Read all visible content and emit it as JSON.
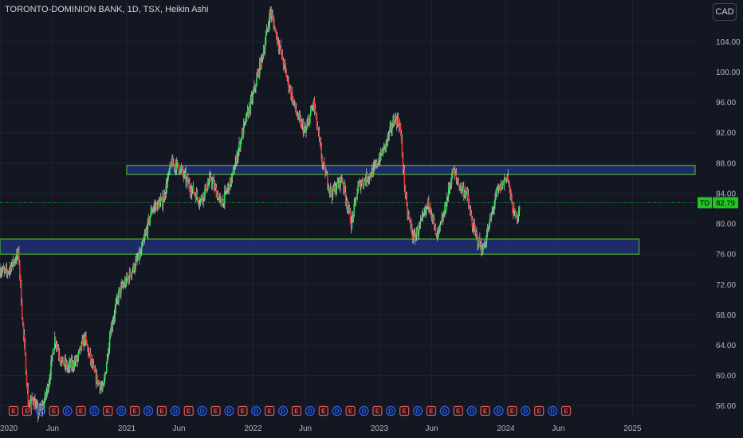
{
  "header": {
    "title": "TORONTO-DOMINION BANK, 1D, TSX, Heikin Ashi",
    "currency_button": "CAD"
  },
  "colors": {
    "background": "#131722",
    "grid": "#1f2330",
    "up": "#26e04e",
    "down": "#ef2f2f",
    "zone_fill": "#1f2d6e",
    "zone_border": "#4caf2a",
    "last_price_bg": "#22c322",
    "event_earnings": "#ef5350",
    "event_dividend": "#2962ff",
    "axis_text": "#b2b5be"
  },
  "price_tag": {
    "ticker": "TD",
    "value": "82.79"
  },
  "events": {
    "labels": {
      "earnings": "E",
      "dividend": "D"
    },
    "sequence": [
      "E",
      "E",
      "D",
      "E",
      "D",
      "E",
      "D",
      "E",
      "D",
      "E",
      "D",
      "E",
      "D",
      "E",
      "D",
      "E",
      "D",
      "E",
      "D",
      "E",
      "D",
      "E",
      "D",
      "E",
      "D",
      "E",
      "D",
      "E",
      "D",
      "E",
      "D",
      "E",
      "D",
      "E",
      "D",
      "E",
      "D",
      "E",
      "D",
      "E",
      "D",
      "E"
    ]
  },
  "chart_data": {
    "type": "candlestick (Heikin Ashi)",
    "symbol": "TD",
    "interval": "1D",
    "exchange": "TSX",
    "currency": "CAD",
    "y_axis": {
      "ylim": [
        54.5,
        109.5
      ],
      "ticks": [
        "56.00",
        "60.00",
        "64.00",
        "68.00",
        "72.00",
        "76.00",
        "80.00",
        "84.00",
        "88.00",
        "92.00",
        "96.00",
        "100.00",
        "104.00"
      ]
    },
    "x_axis": {
      "start": "2020-01-01",
      "end": "2025-07-01",
      "ticks": [
        {
          "date": "2020-01-01",
          "label": "2020"
        },
        {
          "date": "2020-06-01",
          "label": "Jun"
        },
        {
          "date": "2021-01-01",
          "label": "2021"
        },
        {
          "date": "2021-06-01",
          "label": "Jun"
        },
        {
          "date": "2022-01-01",
          "label": "2022"
        },
        {
          "date": "2022-06-01",
          "label": "Jun"
        },
        {
          "date": "2023-01-01",
          "label": "2023"
        },
        {
          "date": "2023-06-01",
          "label": "Jun"
        },
        {
          "date": "2024-01-01",
          "label": "2024"
        },
        {
          "date": "2024-06-01",
          "label": "Jun"
        },
        {
          "date": "2025-01-01",
          "label": "2025"
        }
      ]
    },
    "price_path": [
      [
        "2020-01-01",
        74.0
      ],
      [
        "2020-01-20",
        73.5
      ],
      [
        "2020-02-15",
        75.5
      ],
      [
        "2020-02-24",
        76.0
      ],
      [
        "2020-03-05",
        68.0
      ],
      [
        "2020-03-23",
        56.0
      ],
      [
        "2020-04-05",
        57.0
      ],
      [
        "2020-04-20",
        55.0
      ],
      [
        "2020-05-05",
        56.0
      ],
      [
        "2020-05-20",
        59.0
      ],
      [
        "2020-06-08",
        65.0
      ],
      [
        "2020-06-25",
        62.0
      ],
      [
        "2020-07-15",
        61.0
      ],
      [
        "2020-08-10",
        62.0
      ],
      [
        "2020-09-01",
        65.0
      ],
      [
        "2020-10-01",
        60.0
      ],
      [
        "2020-10-25",
        58.0
      ],
      [
        "2020-11-15",
        66.0
      ],
      [
        "2020-12-10",
        71.0
      ],
      [
        "2021-01-01",
        72.5
      ],
      [
        "2021-02-10",
        76.0
      ],
      [
        "2021-03-15",
        82.0
      ],
      [
        "2021-04-15",
        83.0
      ],
      [
        "2021-05-10",
        88.0
      ],
      [
        "2021-06-01",
        87.5
      ],
      [
        "2021-07-01",
        85.0
      ],
      [
        "2021-08-01",
        83.0
      ],
      [
        "2021-09-01",
        86.0
      ],
      [
        "2021-10-01",
        82.5
      ],
      [
        "2021-11-01",
        86.0
      ],
      [
        "2021-12-01",
        92.0
      ],
      [
        "2022-01-01",
        97.0
      ],
      [
        "2022-02-01",
        103.0
      ],
      [
        "2022-02-20",
        108.0
      ],
      [
        "2022-03-15",
        104.0
      ],
      [
        "2022-04-10",
        99.0
      ],
      [
        "2022-05-10",
        94.0
      ],
      [
        "2022-06-01",
        92.0
      ],
      [
        "2022-06-25",
        96.0
      ],
      [
        "2022-07-20",
        88.0
      ],
      [
        "2022-08-15",
        84.0
      ],
      [
        "2022-09-15",
        86.0
      ],
      [
        "2022-10-12",
        80.0
      ],
      [
        "2022-11-01",
        85.0
      ],
      [
        "2022-12-15",
        87.0
      ],
      [
        "2023-01-15",
        90.0
      ],
      [
        "2023-02-15",
        94.0
      ],
      [
        "2023-03-01",
        93.0
      ],
      [
        "2023-03-20",
        82.0
      ],
      [
        "2023-04-10",
        78.0
      ],
      [
        "2023-05-01",
        80.0
      ],
      [
        "2023-05-25",
        83.0
      ],
      [
        "2023-06-15",
        78.0
      ],
      [
        "2023-07-05",
        81.0
      ],
      [
        "2023-08-01",
        87.0
      ],
      [
        "2023-08-20",
        85.0
      ],
      [
        "2023-09-10",
        84.0
      ],
      [
        "2023-09-25",
        80.0
      ],
      [
        "2023-10-10",
        78.0
      ],
      [
        "2023-10-27",
        76.5
      ],
      [
        "2023-11-15",
        80.0
      ],
      [
        "2023-12-05",
        84.0
      ],
      [
        "2023-12-20",
        85.0
      ],
      [
        "2024-01-05",
        86.5
      ],
      [
        "2024-01-20",
        82.0
      ],
      [
        "2024-02-01",
        80.5
      ],
      [
        "2024-02-10",
        82.79
      ]
    ],
    "zones": [
      {
        "name": "resistance",
        "from": "2021-01-01",
        "to": "2025-07-01",
        "low": 86.5,
        "high": 87.7
      },
      {
        "name": "support",
        "from": "2020-01-01",
        "to": "2025-01-20",
        "low": 76.0,
        "high": 78.0
      }
    ],
    "last_price": 82.79
  }
}
